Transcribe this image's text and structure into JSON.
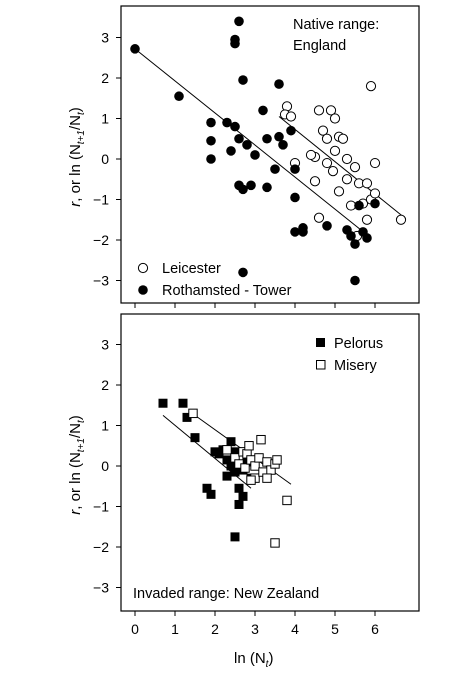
{
  "figure": {
    "x_axis_label": "ln (N",
    "x_axis_label_sub": "t",
    "x_axis_label_close": ")",
    "y_axis_label_r": "r",
    "y_axis_label_mid": ", or ln (N",
    "y_axis_label_sub1": "t+1",
    "y_axis_label_slash": "/N",
    "y_axis_label_sub2": "t",
    "y_axis_label_close": ")"
  },
  "chart_data": [
    {
      "type": "scatter",
      "panel": "top",
      "annotation": [
        "Native range:",
        "England"
      ],
      "xlim": [
        -0.3,
        7.0
      ],
      "ylim": [
        -3.4,
        3.5
      ],
      "xticks": [
        0,
        1,
        2,
        3,
        4,
        5,
        6
      ],
      "yticks": [
        -3,
        -2,
        -1,
        0,
        1,
        2,
        3
      ],
      "legend_position": "bottom-left",
      "series": [
        {
          "name": "Leicester",
          "marker": "open-circle",
          "fit": {
            "x": [
              3.6,
              6.7
            ],
            "y": [
              1.05,
              -1.42
            ]
          },
          "points": [
            [
              3.8,
              1.3
            ],
            [
              3.75,
              1.1
            ],
            [
              3.9,
              1.05
            ],
            [
              4.0,
              -0.1
            ],
            [
              4.5,
              0.05
            ],
            [
              4.6,
              1.2
            ],
            [
              4.4,
              0.1
            ],
            [
              4.7,
              0.7
            ],
            [
              4.8,
              0.5
            ],
            [
              4.9,
              1.2
            ],
            [
              5.0,
              1.0
            ],
            [
              5.1,
              0.55
            ],
            [
              5.2,
              0.5
            ],
            [
              5.3,
              0.0
            ],
            [
              5.0,
              0.2
            ],
            [
              4.8,
              -0.1
            ],
            [
              4.95,
              -0.3
            ],
            [
              5.3,
              -0.5
            ],
            [
              5.1,
              -0.8
            ],
            [
              5.5,
              -0.2
            ],
            [
              5.6,
              -0.6
            ],
            [
              5.7,
              -1.1
            ],
            [
              5.9,
              -1.0
            ],
            [
              6.0,
              -0.85
            ],
            [
              5.8,
              -1.5
            ],
            [
              5.4,
              -1.15
            ],
            [
              5.55,
              -1.9
            ],
            [
              4.6,
              -1.45
            ],
            [
              6.0,
              -0.1
            ],
            [
              5.8,
              -0.6
            ],
            [
              6.65,
              -1.5
            ],
            [
              4.5,
              -0.55
            ],
            [
              5.9,
              1.8
            ]
          ]
        },
        {
          "name": "Rothamsted - Tower",
          "marker": "filled-circle",
          "fit": {
            "x": [
              0.0,
              5.9
            ],
            "y": [
              2.72,
              -1.95
            ]
          },
          "points": [
            [
              0.0,
              2.72
            ],
            [
              1.1,
              1.55
            ],
            [
              1.9,
              0.9
            ],
            [
              1.9,
              0.45
            ],
            [
              1.9,
              0.0
            ],
            [
              2.3,
              0.9
            ],
            [
              2.4,
              0.2
            ],
            [
              2.5,
              2.95
            ],
            [
              2.5,
              2.85
            ],
            [
              2.6,
              3.4
            ],
            [
              2.6,
              0.5
            ],
            [
              2.5,
              0.8
            ],
            [
              2.6,
              -0.65
            ],
            [
              2.7,
              -0.75
            ],
            [
              2.7,
              1.95
            ],
            [
              2.8,
              0.35
            ],
            [
              2.9,
              -0.65
            ],
            [
              3.0,
              0.1
            ],
            [
              3.2,
              1.2
            ],
            [
              3.3,
              0.5
            ],
            [
              3.3,
              -0.7
            ],
            [
              3.6,
              0.55
            ],
            [
              3.7,
              0.35
            ],
            [
              3.6,
              1.85
            ],
            [
              3.9,
              0.7
            ],
            [
              4.0,
              -0.25
            ],
            [
              4.0,
              -0.95
            ],
            [
              4.2,
              -1.7
            ],
            [
              4.2,
              -1.8
            ],
            [
              4.8,
              -1.65
            ],
            [
              5.6,
              -1.15
            ],
            [
              5.7,
              -1.8
            ],
            [
              5.5,
              -2.1
            ],
            [
              5.4,
              -1.9
            ],
            [
              5.5,
              -3.0
            ],
            [
              5.3,
              -1.75
            ],
            [
              5.8,
              -1.95
            ],
            [
              6.0,
              -1.1
            ],
            [
              4.0,
              -1.8
            ],
            [
              2.7,
              -2.8
            ],
            [
              3.5,
              -0.25
            ]
          ]
        }
      ]
    },
    {
      "type": "scatter",
      "panel": "bottom",
      "annotation": [
        "Invaded range: New Zealand"
      ],
      "xlim": [
        -0.3,
        7.0
      ],
      "ylim": [
        -3.4,
        3.5
      ],
      "xticks": [
        0,
        1,
        2,
        3,
        4,
        5,
        6
      ],
      "yticks": [
        -3,
        -2,
        -1,
        0,
        1,
        2,
        3
      ],
      "legend_position": "top-right",
      "series": [
        {
          "name": "Pelorus",
          "marker": "filled-square",
          "fit": {
            "x": [
              0.7,
              2.9
            ],
            "y": [
              1.25,
              -0.55
            ]
          },
          "points": [
            [
              0.7,
              1.55
            ],
            [
              1.2,
              1.55
            ],
            [
              1.3,
              1.2
            ],
            [
              1.5,
              0.7
            ],
            [
              1.8,
              -0.55
            ],
            [
              1.9,
              -0.7
            ],
            [
              2.0,
              0.35
            ],
            [
              2.1,
              0.3
            ],
            [
              2.2,
              0.4
            ],
            [
              2.3,
              0.15
            ],
            [
              2.4,
              0.0
            ],
            [
              2.4,
              0.6
            ],
            [
              2.5,
              0.35
            ],
            [
              2.5,
              -0.15
            ],
            [
              2.6,
              -0.55
            ],
            [
              2.6,
              -0.95
            ],
            [
              2.7,
              -0.75
            ],
            [
              2.7,
              -0.1
            ],
            [
              2.8,
              0.1
            ],
            [
              2.5,
              -1.75
            ],
            [
              2.3,
              -0.25
            ],
            [
              2.9,
              -0.3
            ]
          ]
        },
        {
          "name": "Misery",
          "marker": "open-square",
          "fit": {
            "x": [
              1.5,
              3.9
            ],
            "y": [
              1.25,
              -0.45
            ]
          },
          "points": [
            [
              1.45,
              1.3
            ],
            [
              2.3,
              0.4
            ],
            [
              2.5,
              0.2
            ],
            [
              2.6,
              0.05
            ],
            [
              2.7,
              0.35
            ],
            [
              2.75,
              -0.05
            ],
            [
              2.8,
              0.3
            ],
            [
              2.85,
              0.5
            ],
            [
              2.9,
              0.15
            ],
            [
              3.0,
              0.0
            ],
            [
              3.0,
              -0.3
            ],
            [
              3.1,
              0.2
            ],
            [
              3.15,
              0.65
            ],
            [
              3.2,
              -0.15
            ],
            [
              3.3,
              0.1
            ],
            [
              3.4,
              -0.1
            ],
            [
              3.5,
              0.05
            ],
            [
              3.55,
              0.15
            ],
            [
              3.3,
              -0.3
            ],
            [
              3.5,
              -1.9
            ],
            [
              3.8,
              -0.85
            ],
            [
              2.9,
              -0.35
            ]
          ]
        }
      ]
    }
  ]
}
